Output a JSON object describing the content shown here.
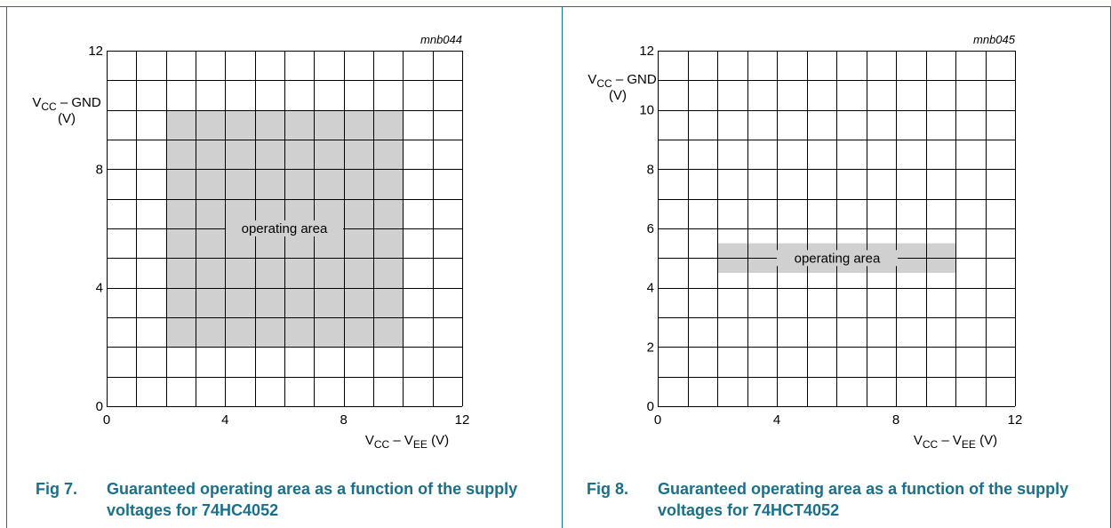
{
  "chart_data": [
    {
      "type": "area",
      "code": "mnb044",
      "ylabel_main": "V",
      "ylabel_sub": "CC",
      "ylabel_rest": " – GND",
      "ylabel_unit": "(V)",
      "xlabel_main": "V",
      "xlabel_sub1": "CC",
      "xlabel_mid": " – V",
      "xlabel_sub2": "EE",
      "xlabel_unit": " (V)",
      "xlim": [
        0,
        12
      ],
      "ylim": [
        0,
        12
      ],
      "xticks": [
        "0",
        "4",
        "8",
        "12"
      ],
      "yticks": [
        "0",
        "4",
        "8",
        "12"
      ],
      "grid": true,
      "region": {
        "x": [
          2,
          10
        ],
        "y": [
          2,
          10
        ],
        "label": "operating area"
      }
    },
    {
      "type": "area",
      "code": "mnb045",
      "ylabel_main": "V",
      "ylabel_sub": "CC",
      "ylabel_rest": " – GND",
      "ylabel_unit": "(V)",
      "xlabel_main": "V",
      "xlabel_sub1": "CC",
      "xlabel_mid": " – V",
      "xlabel_sub2": "EE",
      "xlabel_unit": " (V)",
      "xlim": [
        0,
        12
      ],
      "ylim": [
        0,
        12
      ],
      "xticks": [
        "0",
        "4",
        "8",
        "12"
      ],
      "yticks": [
        "0",
        "2",
        "4",
        "6",
        "8",
        "10",
        "12"
      ],
      "grid": true,
      "region": {
        "x": [
          2,
          10
        ],
        "y": [
          4.5,
          5.5
        ],
        "label": "operating area"
      }
    }
  ],
  "captions": [
    {
      "fig": "Fig 7.",
      "text": "Guaranteed operating area as a function of the supply voltages for 74HC4052"
    },
    {
      "fig": "Fig 8.",
      "text": "Guaranteed operating area as a function of the supply voltages for 74HCT4052"
    }
  ],
  "colors": {
    "frame": "#1a6f8a",
    "caption": "#1a6f8a",
    "region": "#d0d0d0",
    "grid": "#000000"
  }
}
